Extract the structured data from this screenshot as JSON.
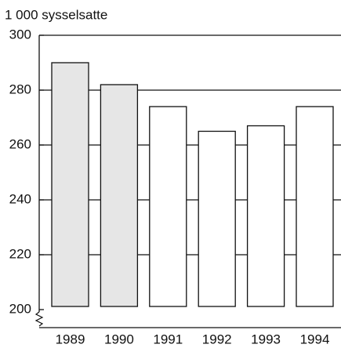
{
  "chart_data": {
    "type": "bar",
    "y_label": "1 000 sysselsatte",
    "categories": [
      "1989",
      "1990",
      "1991",
      "1992",
      "1993",
      "1994"
    ],
    "values": [
      290,
      282,
      274,
      265,
      267,
      274
    ],
    "colors": [
      "#e6e6e6",
      "#e6e6e6",
      "#ffffff",
      "#ffffff",
      "#ffffff",
      "#ffffff"
    ],
    "ylim": [
      200,
      300
    ],
    "yticks": [
      200,
      220,
      240,
      260,
      280,
      300
    ],
    "grid": true
  }
}
